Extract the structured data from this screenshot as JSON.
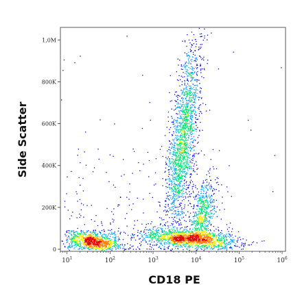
{
  "chart_data": {
    "type": "scatter",
    "title": "",
    "xlabel": "CD18 PE",
    "ylabel": "Side Scatter",
    "x_scale": "log",
    "xlim": [
      7,
      1200000
    ],
    "ylim": [
      0,
      1050000
    ],
    "x_ticks": [
      {
        "base": "10",
        "exp": "1",
        "value": 10
      },
      {
        "base": "10",
        "exp": "2",
        "value": 100
      },
      {
        "base": "10",
        "exp": "3",
        "value": 1000
      },
      {
        "base": "10",
        "exp": "4",
        "value": 10000
      },
      {
        "base": "10",
        "exp": "5",
        "value": 100000
      },
      {
        "base": "10",
        "exp": "6",
        "value": 1000000
      }
    ],
    "y_ticks": [
      {
        "label": "0",
        "value": 0
      },
      {
        "label": "200K",
        "value": 200000
      },
      {
        "label": "400K",
        "value": 400000
      },
      {
        "label": "600K",
        "value": 600000
      },
      {
        "label": "800K",
        "value": 800000
      },
      {
        "label": "1,0M",
        "value": 1000000
      }
    ],
    "grid": false,
    "colormap": [
      "#0000c8",
      "#00a0ff",
      "#00e070",
      "#f0f000",
      "#ff8000",
      "#e00000"
    ],
    "populations": [
      {
        "name_hidden": true,
        "x_center": 40,
        "y_center": 35000,
        "count": 750
      },
      {
        "name_hidden": true,
        "x_center": 5000,
        "y_center": 520000,
        "count": 1900
      },
      {
        "name_hidden": true,
        "x_center": 7000,
        "y_center": 50000,
        "count": 1500
      },
      {
        "name_hidden": true,
        "x_center": 14000,
        "y_center": 150000,
        "count": 650
      }
    ]
  }
}
